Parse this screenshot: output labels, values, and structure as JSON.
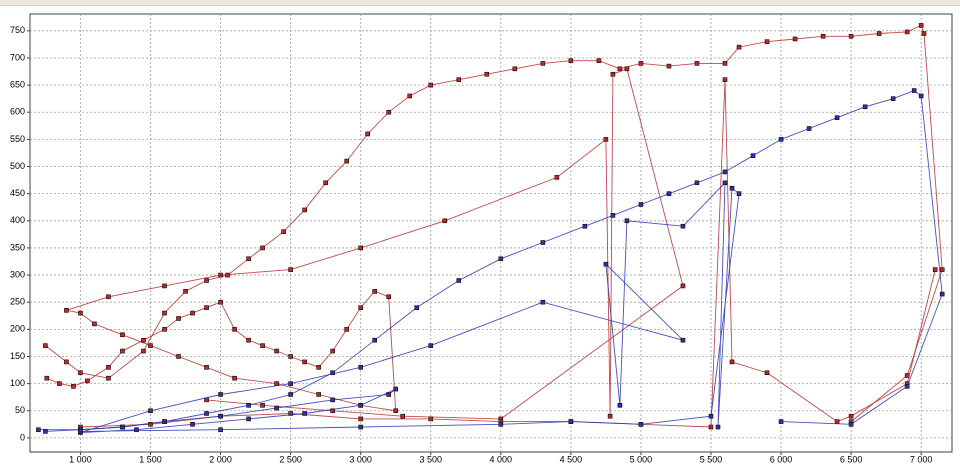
{
  "chart_data": {
    "type": "line",
    "xlim": [
      640,
      7220
    ],
    "ylim": [
      -26,
      781
    ],
    "grid": true,
    "xticks": [
      {
        "value": 1000,
        "label": "1 000"
      },
      {
        "value": 1500,
        "label": "1 500"
      },
      {
        "value": 2000,
        "label": "2 000"
      },
      {
        "value": 2500,
        "label": "2 500"
      },
      {
        "value": 3000,
        "label": "3 000"
      },
      {
        "value": 3500,
        "label": "3 500"
      },
      {
        "value": 4000,
        "label": "4 000"
      },
      {
        "value": 4500,
        "label": "4 500"
      },
      {
        "value": 5000,
        "label": "5 000"
      },
      {
        "value": 5500,
        "label": "5 500"
      },
      {
        "value": 6000,
        "label": "6 000"
      },
      {
        "value": 6500,
        "label": "6 500"
      },
      {
        "value": 7000,
        "label": "7 000"
      }
    ],
    "yticks": [
      0,
      50,
      100,
      150,
      200,
      250,
      300,
      350,
      400,
      450,
      500,
      550,
      600,
      650,
      700,
      750
    ],
    "series": [
      {
        "color": "#b52a2a",
        "x": [
          750,
          900,
          1000,
          1200,
          1450,
          1600,
          1750,
          1900,
          2050,
          2200,
          2300,
          2450,
          2600,
          2750,
          2900,
          3050,
          3200,
          3350,
          3500,
          3700,
          3900,
          4100,
          4300,
          4500,
          4700,
          4850,
          5000,
          5200,
          5400,
          5600,
          5700,
          5900,
          6100,
          6300,
          6500,
          6700,
          6900,
          7000,
          7020,
          7150,
          6900,
          6500
        ],
        "values": [
          170,
          140,
          120,
          110,
          160,
          230,
          270,
          290,
          300,
          330,
          350,
          380,
          420,
          470,
          510,
          560,
          600,
          630,
          650,
          660,
          670,
          680,
          690,
          695,
          695,
          680,
          690,
          685,
          690,
          690,
          720,
          730,
          735,
          740,
          740,
          745,
          748,
          760,
          745,
          310,
          115,
          30
        ]
      },
      {
        "color": "#b52a2a",
        "x": [
          760,
          850,
          950,
          1050,
          1200,
          1300,
          1450,
          1600,
          1700,
          1800,
          1900,
          2000,
          2100,
          2200,
          2300,
          2400,
          2500,
          2600,
          2700,
          2800,
          2900,
          3000,
          3100,
          3200,
          3250,
          3000,
          2700,
          2400,
          2100,
          1900,
          1700,
          1500,
          1300,
          1100,
          1000,
          900,
          1200,
          1600,
          2000,
          2500,
          3000,
          3600,
          4400,
          4750,
          4780,
          4800,
          4900,
          5300,
          4000,
          3300,
          2800,
          2300,
          1900
        ],
        "values": [
          110,
          100,
          95,
          105,
          130,
          160,
          180,
          200,
          220,
          230,
          240,
          250,
          200,
          180,
          170,
          160,
          150,
          140,
          130,
          160,
          200,
          240,
          270,
          260,
          50,
          60,
          80,
          100,
          110,
          130,
          150,
          170,
          190,
          210,
          230,
          235,
          260,
          280,
          300,
          310,
          350,
          400,
          480,
          550,
          40,
          670,
          680,
          280,
          35,
          40,
          50,
          60,
          70
        ]
      },
      {
        "color": "#b52a2a",
        "x": [
          1000,
          1500,
          2000,
          2500,
          3000,
          3500,
          4000,
          4500,
          5000,
          5500,
          5600,
          5650,
          5900,
          6400,
          6500,
          6900,
          7100
        ],
        "values": [
          20,
          25,
          40,
          45,
          35,
          35,
          30,
          30,
          25,
          20,
          660,
          140,
          120,
          30,
          40,
          100,
          310
        ]
      },
      {
        "color": "#2533b0",
        "x": [
          700,
          1000,
          1300,
          1600,
          1900,
          2200,
          2500,
          2800,
          3100,
          3400,
          3700,
          4000,
          4300,
          4600,
          4800,
          5000,
          5200,
          5400,
          5600,
          5800,
          6000,
          6200,
          6400,
          6600,
          6800,
          6950,
          7000,
          7150,
          6900,
          6500,
          6000
        ],
        "values": [
          15,
          15,
          20,
          30,
          45,
          60,
          80,
          120,
          180,
          240,
          290,
          330,
          360,
          390,
          410,
          430,
          450,
          470,
          490,
          520,
          550,
          570,
          590,
          610,
          625,
          640,
          630,
          265,
          95,
          25,
          30
        ]
      },
      {
        "color": "#2533b0",
        "x": [
          750,
          1000,
          1300,
          1600,
          2000,
          2400,
          2800,
          3200,
          3250,
          3000,
          2600,
          2200,
          1800,
          1400,
          1000,
          1500,
          2000,
          2500,
          3000,
          3500,
          4300,
          5300,
          4750,
          4850,
          4900,
          5300,
          5600,
          5550,
          5650,
          5700,
          5500,
          5000,
          4500,
          4000,
          3000,
          2000,
          1000
        ],
        "values": [
          12,
          15,
          20,
          30,
          40,
          55,
          70,
          80,
          90,
          60,
          45,
          35,
          25,
          15,
          10,
          50,
          80,
          100,
          130,
          170,
          250,
          180,
          320,
          60,
          400,
          390,
          470,
          20,
          460,
          450,
          40,
          25,
          30,
          25,
          20,
          15,
          12
        ]
      }
    ]
  }
}
